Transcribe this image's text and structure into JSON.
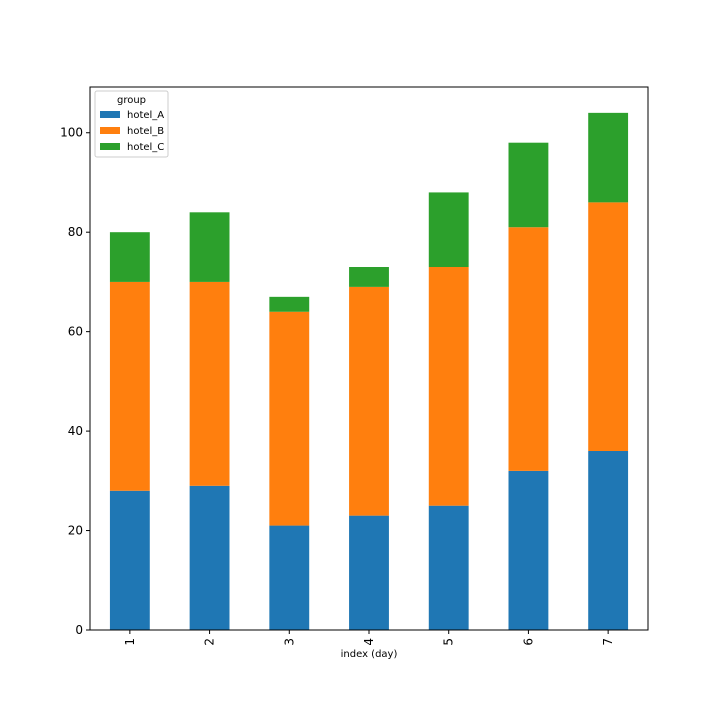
{
  "chart_data": {
    "type": "bar",
    "stacked": true,
    "categories": [
      "1",
      "2",
      "3",
      "4",
      "5",
      "6",
      "7"
    ],
    "series": [
      {
        "name": "hotel_A",
        "color": "#1f77b4",
        "values": [
          28,
          29,
          21,
          23,
          25,
          32,
          36
        ]
      },
      {
        "name": "hotel_B",
        "color": "#ff7f0e",
        "values": [
          42,
          41,
          43,
          46,
          48,
          49,
          50
        ]
      },
      {
        "name": "hotel_C",
        "color": "#2ca02c",
        "values": [
          10,
          14,
          3,
          4,
          15,
          17,
          18
        ]
      }
    ],
    "title": "",
    "xlabel": "index (day)",
    "ylabel": "",
    "ylim": [
      0,
      109.2
    ],
    "yticks": [
      0,
      20,
      40,
      60,
      80,
      100
    ],
    "grid": false,
    "legend": {
      "title": "group",
      "placement": "top-left"
    }
  }
}
